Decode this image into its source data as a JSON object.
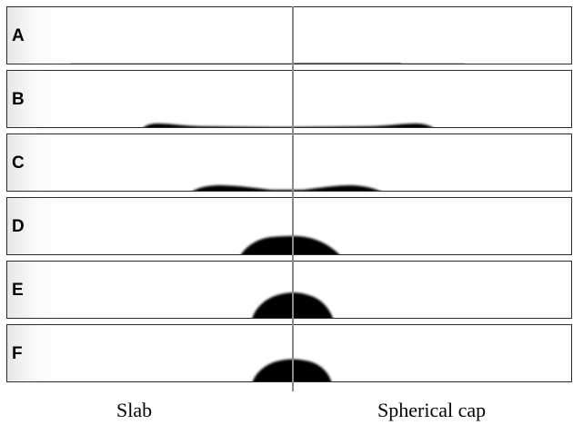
{
  "panels": [
    {
      "label": "A"
    },
    {
      "label": "B"
    },
    {
      "label": "C"
    },
    {
      "label": "D"
    },
    {
      "label": "E"
    },
    {
      "label": "F"
    }
  ],
  "captions": {
    "left": "Slab",
    "right": "Spherical cap"
  },
  "colors": {
    "frame": "#2a2a2a",
    "divider": "#8a8a8a",
    "droplet": "#000000"
  }
}
